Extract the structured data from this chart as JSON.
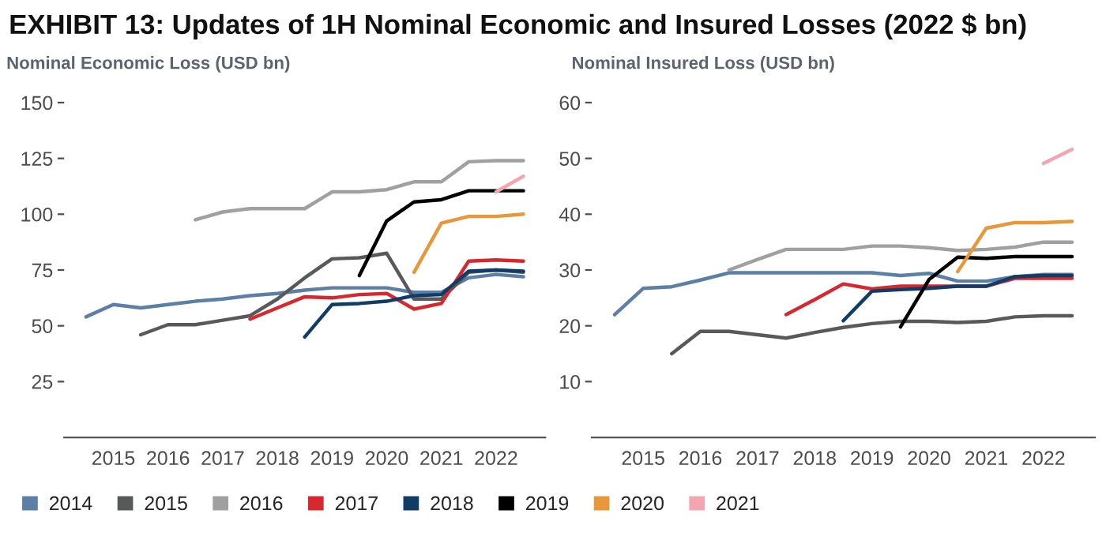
{
  "chart_data": [
    {
      "type": "line",
      "title": "EXHIBIT 13: Updates of 1H Nominal Economic and Insured Losses (2022 $ bn)",
      "ylabel": "Nominal Economic Loss (USD bn)",
      "xlim": [
        2014.1,
        2022.9
      ],
      "xticks": [
        2015,
        2016,
        2017,
        2018,
        2019,
        2020,
        2021,
        2022
      ],
      "ylim": [
        0,
        150
      ],
      "yticks": [
        25,
        50,
        75,
        100,
        125,
        150
      ],
      "grid": false,
      "legend": "bottom",
      "marker": "none",
      "line_style": "solid",
      "series": [
        {
          "name": "2014",
          "color": "#5b7fa6",
          "x": [
            2014.5,
            2015,
            2015.5,
            2016,
            2016.5,
            2017,
            2017.5,
            2018,
            2018.5,
            2019,
            2019.5,
            2020,
            2020.5,
            2021,
            2021.5,
            2022,
            2022.5
          ],
          "values": [
            54,
            59.5,
            58,
            59.5,
            61,
            62,
            63.5,
            64.5,
            66,
            67,
            67,
            67,
            65,
            65,
            71.5,
            73,
            72
          ]
        },
        {
          "name": "2015",
          "color": "#58595b",
          "x": [
            2015.5,
            2016,
            2016.5,
            2017,
            2017.5,
            2018,
            2018.5,
            2019,
            2019.5,
            2020,
            2020.5,
            2021,
            2021.5,
            2022,
            2022.5
          ],
          "values": [
            46,
            50.5,
            50.5,
            52.5,
            54.5,
            62,
            71.5,
            80,
            80.5,
            82.5,
            62,
            62,
            74,
            75,
            74
          ]
        },
        {
          "name": "2016",
          "color": "#a0a0a0",
          "x": [
            2016.5,
            2017,
            2017.5,
            2018,
            2018.5,
            2019,
            2019.5,
            2020,
            2020.5,
            2021,
            2021.5,
            2022,
            2022.5
          ],
          "values": [
            97.5,
            101,
            102.5,
            102.5,
            102.5,
            110,
            110,
            111,
            114.5,
            114.5,
            123.5,
            124,
            124
          ]
        },
        {
          "name": "2017",
          "color": "#d7282f",
          "x": [
            2017.5,
            2018,
            2018.5,
            2019,
            2019.5,
            2020,
            2020.5,
            2021,
            2021.5,
            2022,
            2022.5
          ],
          "values": [
            53,
            58,
            63,
            62.5,
            64,
            64.5,
            57.5,
            60,
            79,
            79.5,
            79
          ]
        },
        {
          "name": "2018",
          "color": "#0f3d68",
          "x": [
            2018.5,
            2019,
            2019.5,
            2020,
            2020.5,
            2021,
            2021.5,
            2022,
            2022.5
          ],
          "values": [
            45,
            59.5,
            60,
            61,
            63.5,
            64,
            74.5,
            75,
            74.5
          ]
        },
        {
          "name": "2019",
          "color": "#000000",
          "x": [
            2019.5,
            2020,
            2020.5,
            2021,
            2021.5,
            2022,
            2022.5
          ],
          "values": [
            72.5,
            97,
            105.5,
            106.5,
            110.5,
            110.5,
            110.5
          ]
        },
        {
          "name": "2020",
          "color": "#e8973a",
          "x": [
            2020.5,
            2021,
            2021.5,
            2022,
            2022.5
          ],
          "values": [
            74,
            96,
            99,
            99,
            100
          ]
        },
        {
          "name": "2021",
          "color": "#f4a6b0",
          "x": [
            2022,
            2022.5
          ],
          "values": [
            110,
            117
          ]
        }
      ]
    },
    {
      "type": "line",
      "ylabel": "Nominal Insured Loss (USD bn)",
      "xlim": [
        2014.1,
        2022.9
      ],
      "xticks": [
        2015,
        2016,
        2017,
        2018,
        2019,
        2020,
        2021,
        2022
      ],
      "ylim": [
        0,
        60
      ],
      "yticks": [
        10,
        20,
        30,
        40,
        50,
        60
      ],
      "grid": false,
      "legend": "bottom",
      "marker": "none",
      "line_style": "solid",
      "series": [
        {
          "name": "2014",
          "color": "#5b7fa6",
          "x": [
            2014.5,
            2015,
            2015.5,
            2016,
            2016.5,
            2017,
            2017.5,
            2018,
            2018.5,
            2019,
            2019.5,
            2020,
            2020.5,
            2021,
            2021.5,
            2022,
            2022.5
          ],
          "values": [
            22,
            26.7,
            27,
            28.2,
            29.5,
            29.5,
            29.5,
            29.5,
            29.5,
            29.5,
            29,
            29.4,
            28,
            28,
            28.8,
            29.2,
            29.2
          ]
        },
        {
          "name": "2015",
          "color": "#58595b",
          "x": [
            2015.5,
            2016,
            2016.5,
            2017,
            2017.5,
            2018,
            2018.5,
            2019,
            2019.5,
            2020,
            2020.5,
            2021,
            2021.5,
            2022,
            2022.5
          ],
          "values": [
            15,
            19,
            19,
            18.4,
            17.8,
            18.8,
            19.7,
            20.4,
            20.8,
            20.8,
            20.6,
            20.8,
            21.6,
            21.8,
            21.8
          ]
        },
        {
          "name": "2016",
          "color": "#a0a0a0",
          "x": [
            2016.5,
            2017,
            2017.5,
            2018,
            2018.5,
            2019,
            2019.5,
            2020,
            2020.5,
            2021,
            2021.5,
            2022,
            2022.5
          ],
          "values": [
            30,
            31.9,
            33.7,
            33.7,
            33.7,
            34.3,
            34.3,
            34,
            33.5,
            33.7,
            34.1,
            35,
            35
          ]
        },
        {
          "name": "2017",
          "color": "#d7282f",
          "x": [
            2017.5,
            2018,
            2018.5,
            2019,
            2019.5,
            2020,
            2020.5,
            2021,
            2021.5,
            2022,
            2022.5
          ],
          "values": [
            22,
            24.7,
            27.5,
            26.6,
            27.1,
            27.1,
            27.1,
            27.1,
            28.5,
            28.5,
            28.5
          ]
        },
        {
          "name": "2018",
          "color": "#0f3d68",
          "x": [
            2018.5,
            2019,
            2019.5,
            2020,
            2020.5,
            2021,
            2021.5,
            2022,
            2022.5
          ],
          "values": [
            20.9,
            26.2,
            26.5,
            26.7,
            27.1,
            27.1,
            28.8,
            29,
            29
          ]
        },
        {
          "name": "2019",
          "color": "#000000",
          "x": [
            2019.5,
            2020,
            2020.5,
            2021,
            2021.5,
            2022,
            2022.5
          ],
          "values": [
            19.8,
            28.3,
            32.3,
            32.1,
            32.4,
            32.4,
            32.4
          ]
        },
        {
          "name": "2020",
          "color": "#e8973a",
          "x": [
            2020.5,
            2021,
            2021.5,
            2022,
            2022.5
          ],
          "values": [
            29.7,
            37.5,
            38.5,
            38.5,
            38.7
          ]
        },
        {
          "name": "2021",
          "color": "#f4a6b0",
          "x": [
            2022,
            2022.5
          ],
          "values": [
            49.1,
            51.6
          ]
        }
      ]
    }
  ]
}
